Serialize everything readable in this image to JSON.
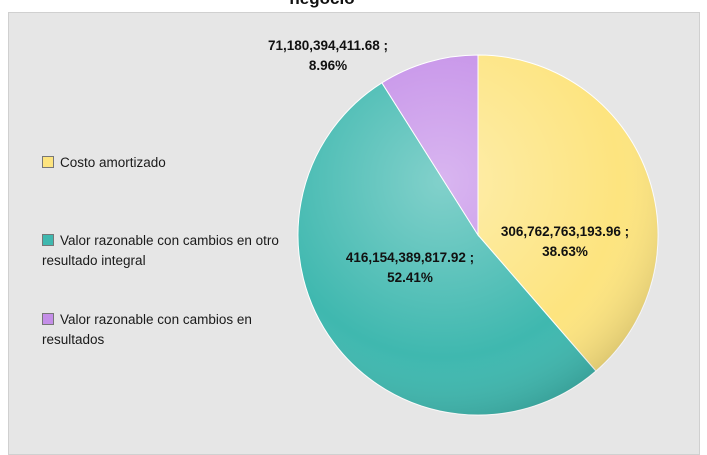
{
  "chart_data": {
    "type": "pie",
    "title": "negocio",
    "categories": [
      "Costo amortizado",
      "Valor razonable con cambios en otro resultado integral",
      "Valor razonable con cambios en resultados"
    ],
    "values": [
      306762763193.96,
      416154389817.92,
      71180394411.68
    ],
    "value_labels": [
      "306,762,763,193.96 ;",
      "416,154,389,817.92 ;",
      "71,180,394,411.68 ;"
    ],
    "percentages": [
      38.63,
      52.41,
      8.96
    ],
    "percentage_labels": [
      "38.63%",
      "52.41%",
      "8.96%"
    ],
    "colors": [
      "#fde47f",
      "#3fb8af",
      "#c48ee8"
    ],
    "legend": "left"
  }
}
